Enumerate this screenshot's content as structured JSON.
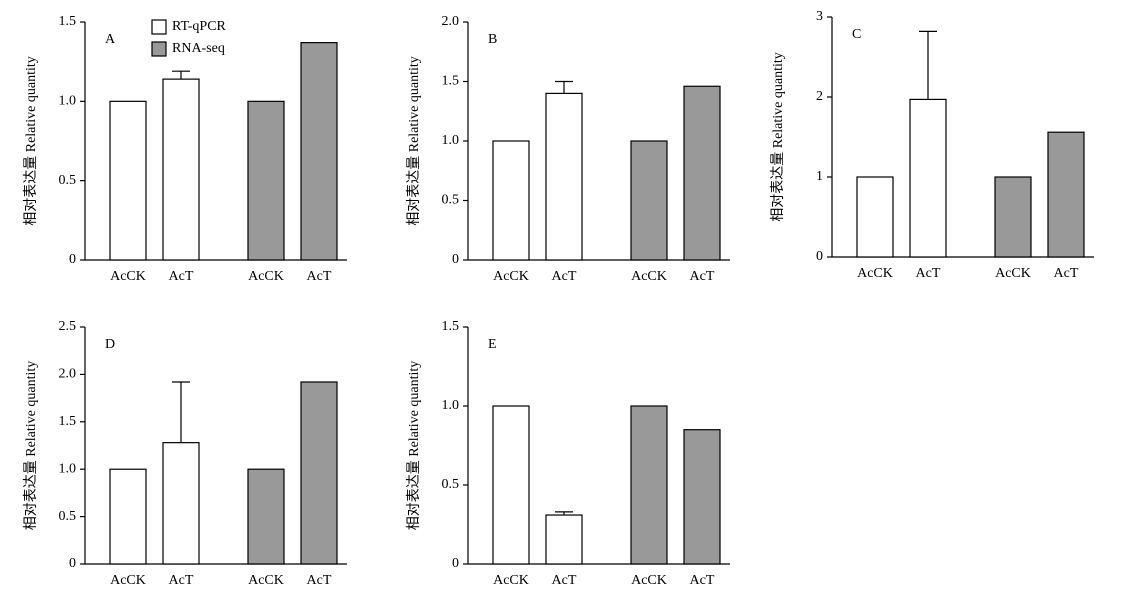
{
  "legend": [
    {
      "name": "RT-qPCR",
      "color": "#ffffff"
    },
    {
      "name": "RNA-seq",
      "color": "#999999"
    }
  ],
  "chart_data": [
    {
      "type": "bar",
      "label": "A",
      "ylabel": "相对表达量 Relative quantity",
      "categories": [
        "AcCK",
        "AcT",
        "AcCK",
        "AcT"
      ],
      "series": [
        {
          "color": "#ffffff",
          "values": [
            1,
            1.14,
            null,
            null
          ],
          "errors": [
            null,
            0.05,
            null,
            null
          ]
        },
        {
          "color": "#999999",
          "values": [
            null,
            null,
            1,
            1.37
          ]
        }
      ],
      "ylim": [
        0,
        1.5
      ],
      "yticks": [
        0,
        0.5,
        {
          "value": 1,
          "label": "1.0"
        },
        1.5
      ]
    },
    {
      "type": "bar",
      "label": "B",
      "ylabel": "相对表达量 Relative quantity",
      "categories": [
        "AcCK",
        "AcT",
        "AcCK",
        "AcT"
      ],
      "series": [
        {
          "color": "#ffffff",
          "values": [
            1,
            1.4,
            null,
            null
          ],
          "errors": [
            null,
            0.1,
            null,
            null
          ]
        },
        {
          "color": "#999999",
          "values": [
            null,
            null,
            1,
            1.46
          ]
        }
      ],
      "ylim": [
        0,
        2
      ],
      "yticks": [
        0,
        0.5,
        {
          "value": 1,
          "label": "1.0"
        },
        1.5,
        {
          "value": 2,
          "label": "2.0"
        }
      ]
    },
    {
      "type": "bar",
      "label": "C",
      "ylabel": "相对表达量 Relative quantity",
      "categories": [
        "AcCK",
        "AcT",
        "AcCK",
        "AcT"
      ],
      "series": [
        {
          "color": "#ffffff",
          "values": [
            1,
            1.97,
            null,
            null
          ],
          "errors": [
            null,
            0.85,
            null,
            null
          ]
        },
        {
          "color": "#999999",
          "values": [
            null,
            null,
            1,
            1.56
          ]
        }
      ],
      "ylim": [
        0,
        3
      ],
      "yticks": [
        0,
        1,
        2,
        3
      ]
    },
    {
      "type": "bar",
      "label": "D",
      "ylabel": "相对表达量 Relative quantity",
      "categories": [
        "AcCK",
        "AcT",
        "AcCK",
        "AcT"
      ],
      "series": [
        {
          "color": "#ffffff",
          "values": [
            1,
            1.28,
            null,
            null
          ],
          "errors": [
            null,
            0.64,
            null,
            null
          ]
        },
        {
          "color": "#999999",
          "values": [
            null,
            null,
            1,
            1.92
          ]
        }
      ],
      "ylim": [
        0,
        2.5
      ],
      "yticks": [
        0,
        0.5,
        {
          "value": 1,
          "label": "1.0"
        },
        1.5,
        {
          "value": 2,
          "label": "2.0"
        },
        2.5
      ]
    },
    {
      "type": "bar",
      "label": "E",
      "ylabel": "相对表达量 Relative quantity",
      "categories": [
        "AcCK",
        "AcT",
        "AcCK",
        "AcT"
      ],
      "series": [
        {
          "color": "#ffffff",
          "values": [
            1,
            0.31,
            null,
            null
          ],
          "errors": [
            null,
            0.02,
            null,
            null
          ]
        },
        {
          "color": "#999999",
          "values": [
            null,
            null,
            1,
            0.85
          ]
        }
      ],
      "ylim": [
        0,
        1.5
      ],
      "yticks": [
        0,
        0.5,
        {
          "value": 1,
          "label": "1.0"
        },
        1.5
      ]
    }
  ]
}
